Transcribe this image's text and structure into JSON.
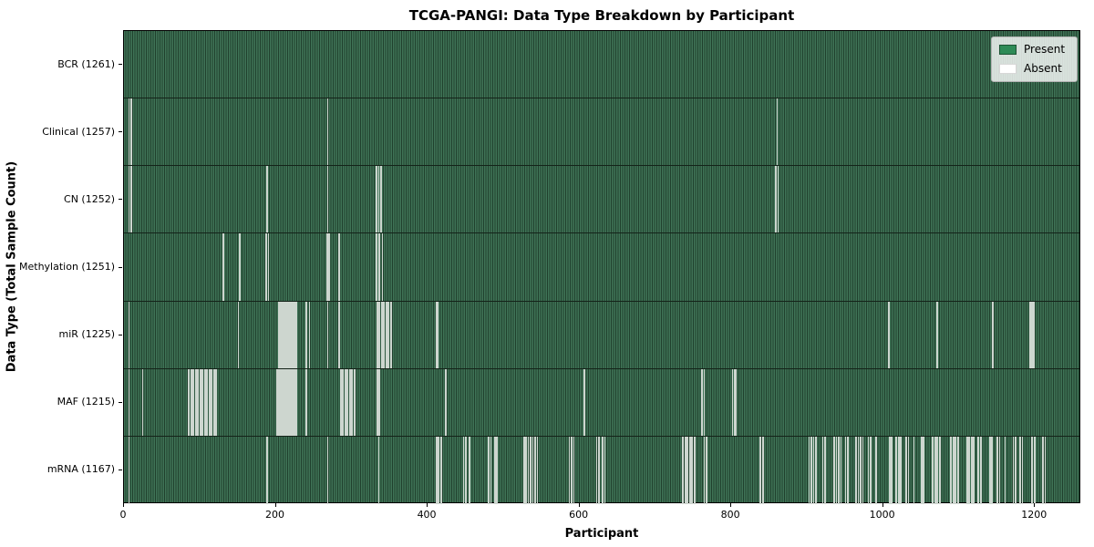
{
  "title": "TCGA-PANGI: Data Type Breakdown by Participant",
  "xlabel": "Participant",
  "ylabel": "Data Type (Total Sample Count)",
  "legend": {
    "present_label": "Present",
    "absent_label": "Absent",
    "present_color": "#2e8b57",
    "absent_color": "#ffffff"
  },
  "colors": {
    "present_fill": "#2e8b57",
    "present_stripe_light": "#3f7356",
    "present_stripe_dark": "#20402d",
    "absent_stripe": "#cdd6cf",
    "row_separator": "#142319",
    "spine": "#000000",
    "background": "#ffffff"
  },
  "chart_data": {
    "type": "heatmap",
    "title": "TCGA-PANGI: Data Type Breakdown by Participant",
    "xlabel": "Participant",
    "ylabel": "Data Type (Total Sample Count)",
    "n_participants": 1261,
    "xlim": [
      0,
      1261
    ],
    "x_ticks": [
      0,
      200,
      400,
      600,
      800,
      1000,
      1200
    ],
    "grid": false,
    "legend_position": "upper right",
    "legend_entries": [
      "Present",
      "Absent"
    ],
    "rows": [
      {
        "label": "BCR (1261)",
        "data_type": "BCR",
        "present_count": 1261,
        "absent_count": 0,
        "absent_participants": []
      },
      {
        "label": "Clinical (1257)",
        "data_type": "Clinical",
        "present_count": 1257,
        "absent_count": 4,
        "absent_participants": [
          6,
          9,
          268,
          860
        ]
      },
      {
        "label": "CN (1252)",
        "data_type": "CN",
        "present_count": 1252,
        "absent_count": 9,
        "absent_participants": [
          6,
          9,
          188,
          268,
          332,
          335,
          338,
          858,
          861
        ]
      },
      {
        "label": "Methylation (1251)",
        "data_type": "Methylation",
        "present_count": 1251,
        "absent_count": 10,
        "absent_participants": [
          130,
          152,
          187,
          190,
          267,
          270,
          283,
          332,
          336,
          340
        ]
      },
      {
        "label": "miR (1225)",
        "data_type": "miR",
        "present_count": 1225,
        "absent_count": 36,
        "absent_participants": [
          6,
          150,
          203,
          205,
          207,
          209,
          211,
          213,
          215,
          217,
          219,
          221,
          223,
          225,
          227,
          240,
          244,
          268,
          283,
          333,
          336,
          339,
          342,
          345,
          348,
          351,
          411,
          413,
          1007,
          1071,
          1144,
          1193,
          1194,
          1195,
          1196,
          1198
        ]
      },
      {
        "label": "MAF (1215)",
        "data_type": "MAF",
        "present_count": 1215,
        "absent_count": 46,
        "absent_participants": [
          6,
          24,
          85,
          88,
          91,
          94,
          97,
          100,
          103,
          106,
          109,
          112,
          115,
          118,
          121,
          201,
          203,
          205,
          207,
          209,
          211,
          213,
          215,
          217,
          219,
          221,
          223,
          225,
          227,
          240,
          285,
          288,
          291,
          294,
          297,
          300,
          303,
          333,
          336,
          423,
          606,
          761,
          764,
          801,
          804,
          806
        ]
      },
      {
        "label": "mRNA (1167)",
        "data_type": "mRNA",
        "present_count": 1167,
        "absent_count": 94,
        "absent_participants": [
          6,
          188,
          268,
          335,
          411,
          414,
          417,
          447,
          450,
          455,
          480,
          483,
          488,
          491,
          527,
          529,
          532,
          535,
          538,
          541,
          544,
          586,
          589,
          592,
          622,
          625,
          630,
          633,
          736,
          739,
          742,
          745,
          748,
          751,
          764,
          767,
          838,
          841,
          902,
          905,
          908,
          911,
          920,
          923,
          935,
          938,
          941,
          944,
          950,
          953,
          964,
          967,
          970,
          973,
          980,
          983,
          990,
          1008,
          1011,
          1017,
          1020,
          1023,
          1030,
          1033,
          1040,
          1050,
          1053,
          1065,
          1068,
          1071,
          1074,
          1089,
          1092,
          1095,
          1098,
          1110,
          1113,
          1116,
          1119,
          1125,
          1128,
          1140,
          1143,
          1150,
          1153,
          1160,
          1171,
          1174,
          1180,
          1183,
          1196,
          1199,
          1210,
          1213
        ]
      }
    ],
    "cell_colors": {
      "present": "#2e8b57",
      "absent": "#ffffff"
    }
  }
}
